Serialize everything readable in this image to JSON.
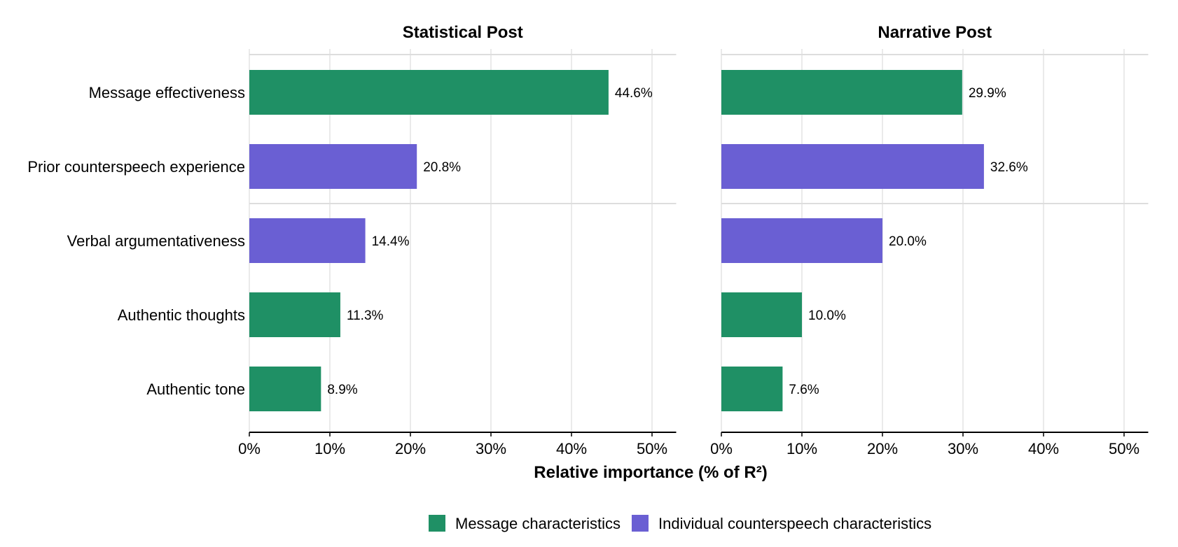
{
  "chart_data": {
    "type": "bar",
    "orientation": "horizontal",
    "xlabel": "Relative importance (% of R²)",
    "xlim": [
      0,
      53
    ],
    "xticks": [
      0,
      10,
      20,
      30,
      40,
      50
    ],
    "xtick_labels": [
      "0%",
      "10%",
      "20%",
      "30%",
      "40%",
      "50%"
    ],
    "categories": [
      "Message effectiveness",
      "Prior counterspeech experience",
      "Verbal argumentativeness",
      "Authentic thoughts",
      "Authentic tone"
    ],
    "category_groups": [
      "Message characteristics",
      "Individual counterspeech characteristics",
      "Individual counterspeech characteristics",
      "Message characteristics",
      "Message characteristics"
    ],
    "legend": {
      "position": "bottom",
      "items": [
        {
          "label": "Message characteristics",
          "color": "#1f9065"
        },
        {
          "label": "Individual counterspeech characteristics",
          "color": "#6a5fd3"
        }
      ]
    },
    "grid": true,
    "panels": [
      {
        "title": "Statistical Post",
        "values": [
          44.6,
          20.8,
          14.4,
          11.3,
          8.9
        ],
        "value_labels": [
          "44.6%",
          "20.8%",
          "14.4%",
          "11.3%",
          "8.9%"
        ]
      },
      {
        "title": "Narrative Post",
        "values": [
          29.9,
          32.6,
          20.0,
          10.0,
          7.6
        ],
        "value_labels": [
          "29.9%",
          "32.6%",
          "20.0%",
          "10.0%",
          "7.6%"
        ]
      }
    ]
  }
}
